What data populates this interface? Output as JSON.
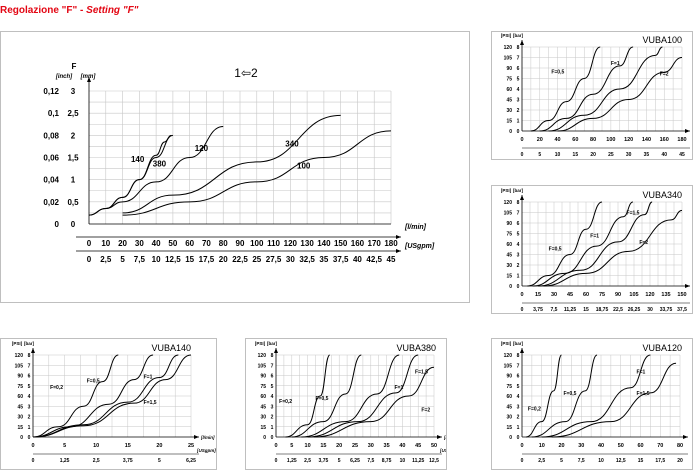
{
  "heading": {
    "main": "Regolazione \"F\"",
    "dash": " - ",
    "setting": "Setting \"F\""
  },
  "chart_data": [
    {
      "type": "line",
      "symbol": "1⇦2",
      "xlabel": "[l/min]",
      "x2label": "[USgpm]",
      "ylabel": "F",
      "yunit_inch": "[inch]",
      "yunit_mm": "[mm]",
      "xlim": [
        0,
        180
      ],
      "ylim": [
        0,
        3
      ],
      "x_ticks": [
        "0",
        "10",
        "20",
        "30",
        "40",
        "50",
        "60",
        "70",
        "80",
        "90",
        "100",
        "110",
        "120",
        "130",
        "140",
        "150",
        "160",
        "170",
        "180"
      ],
      "x2_ticks": [
        "0",
        "2,5",
        "5",
        "7,5",
        "10",
        "12,5",
        "15",
        "17,5",
        "20",
        "22,5",
        "25",
        "27,5",
        "30",
        "32,5",
        "35",
        "37,5",
        "40",
        "42,5",
        "45"
      ],
      "y_ticks_mm": [
        "0",
        "0,5",
        "1",
        "1,5",
        "2",
        "2,5",
        "3"
      ],
      "y_ticks_inch": [
        "0",
        "0,02",
        "0,04",
        "0,06",
        "0,08",
        "0,1",
        "0,12"
      ],
      "series": [
        {
          "name": "140",
          "points": [
            [
              0,
              0.2
            ],
            [
              10,
              0.35
            ],
            [
              20,
              0.6
            ],
            [
              30,
              1.0
            ],
            [
              40,
              1.55
            ],
            [
              45,
              1.85
            ],
            [
              49,
              2.0
            ]
          ]
        },
        {
          "name": "380",
          "points": [
            [
              0,
              0.2
            ],
            [
              10,
              0.35
            ],
            [
              20,
              0.6
            ],
            [
              30,
              1.0
            ],
            [
              40,
              1.5
            ],
            [
              50,
              2.0
            ]
          ]
        },
        {
          "name": "120",
          "points": [
            [
              10,
              0.35
            ],
            [
              20,
              0.5
            ],
            [
              40,
              0.95
            ],
            [
              60,
              1.5
            ],
            [
              80,
              2.2
            ]
          ]
        },
        {
          "name": "340",
          "points": [
            [
              20,
              0.25
            ],
            [
              50,
              0.65
            ],
            [
              100,
              1.4
            ],
            [
              150,
              2.45
            ]
          ]
        },
        {
          "name": "100",
          "points": [
            [
              20,
              0.2
            ],
            [
              60,
              0.5
            ],
            [
              100,
              0.95
            ],
            [
              140,
              1.5
            ],
            [
              180,
              2.1
            ]
          ]
        }
      ]
    },
    {
      "type": "line",
      "title": "VUBA100",
      "psi_unit": "[PSI]",
      "bar_unit": "[bar]",
      "xlim": [
        0,
        180
      ],
      "x_ticks": [
        "0",
        "20",
        "40",
        "60",
        "80",
        "100",
        "120",
        "140",
        "160",
        "180"
      ],
      "x2_ticks": [
        "0",
        "5",
        "10",
        "15",
        "20",
        "25",
        "30",
        "35",
        "40",
        "45"
      ],
      "y_bar_ticks": [
        "0",
        "1",
        "2",
        "3",
        "4",
        "5",
        "6",
        "7",
        "8"
      ],
      "y_psi_ticks": [
        "0",
        "15",
        "30",
        "45",
        "60",
        "75",
        "90",
        "105",
        "120"
      ],
      "series": [
        {
          "name": "F=0,5",
          "points": [
            [
              10,
              0
            ],
            [
              30,
              1
            ],
            [
              50,
              2.8
            ],
            [
              70,
              5
            ],
            [
              88,
              8
            ]
          ]
        },
        {
          "name": "F=1",
          "points": [
            [
              20,
              0
            ],
            [
              50,
              1.2
            ],
            [
              80,
              3.5
            ],
            [
              110,
              6.2
            ],
            [
              125,
              8
            ]
          ]
        },
        {
          "name": "F=1,5",
          "points": [
            [
              30,
              0
            ],
            [
              70,
              1.5
            ],
            [
              110,
              4
            ],
            [
              150,
              7.2
            ],
            [
              158,
              8
            ]
          ]
        },
        {
          "name": "F=2",
          "points": [
            [
              40,
              0
            ],
            [
              80,
              1.2
            ],
            [
              120,
              3
            ],
            [
              160,
              5.6
            ],
            [
              180,
              7
            ]
          ]
        }
      ]
    },
    {
      "type": "line",
      "title": "VUBA340",
      "psi_unit": "[PSI]",
      "bar_unit": "[bar]",
      "xlim": [
        0,
        150
      ],
      "x_ticks": [
        "0",
        "15",
        "30",
        "45",
        "60",
        "75",
        "90",
        "105",
        "120",
        "135",
        "150"
      ],
      "x2_ticks": [
        "0",
        "3,75",
        "7,5",
        "11,25",
        "15",
        "18,75",
        "22,5",
        "26,25",
        "30",
        "33,75",
        "37,5"
      ],
      "y_bar_ticks": [
        "0",
        "1",
        "2",
        "3",
        "4",
        "5",
        "6",
        "7",
        "8"
      ],
      "y_psi_ticks": [
        "0",
        "15",
        "30",
        "45",
        "60",
        "75",
        "90",
        "105",
        "120"
      ],
      "series": [
        {
          "name": "F=0,5",
          "points": [
            [
              5,
              0
            ],
            [
              25,
              1
            ],
            [
              45,
              3
            ],
            [
              60,
              5.4
            ],
            [
              75,
              8
            ]
          ]
        },
        {
          "name": "F=1",
          "points": [
            [
              10,
              0
            ],
            [
              40,
              1.2
            ],
            [
              70,
              3.8
            ],
            [
              95,
              6.6
            ],
            [
              104,
              8
            ]
          ]
        },
        {
          "name": "F=1,5",
          "points": [
            [
              15,
              0
            ],
            [
              55,
              1.5
            ],
            [
              90,
              4.2
            ],
            [
              115,
              6.8
            ],
            [
              122,
              8
            ]
          ]
        },
        {
          "name": "F=2",
          "points": [
            [
              20,
              0
            ],
            [
              60,
              1.2
            ],
            [
              100,
              3.3
            ],
            [
              140,
              6.3
            ],
            [
              150,
              7.2
            ]
          ]
        }
      ]
    },
    {
      "type": "line",
      "title": "VUBA140",
      "psi_unit": "[PSI]",
      "bar_unit": "[bar]",
      "xlabel": "[l/min]",
      "x2label": "[USgpm]",
      "xlim": [
        0,
        25
      ],
      "x_ticks": [
        "0",
        "5",
        "10",
        "15",
        "20",
        "25"
      ],
      "x2_ticks": [
        "0",
        "1,25",
        "2,5",
        "3,75",
        "5",
        "6,25"
      ],
      "y_bar_ticks": [
        "0",
        "1",
        "2",
        "3",
        "4",
        "5",
        "6",
        "7",
        "8"
      ],
      "y_psi_ticks": [
        "0",
        "15",
        "30",
        "45",
        "60",
        "75",
        "90",
        "105",
        "120"
      ],
      "series": [
        {
          "name": "F=0,2",
          "points": [
            [
              0,
              0
            ],
            [
              4,
              1
            ],
            [
              8,
              3
            ],
            [
              11,
              5.4
            ],
            [
              13.5,
              8
            ]
          ]
        },
        {
          "name": "F=0,5",
          "points": [
            [
              0,
              0
            ],
            [
              6,
              1
            ],
            [
              12,
              3.2
            ],
            [
              16,
              5.6
            ],
            [
              19,
              8
            ]
          ]
        },
        {
          "name": "F=1",
          "points": [
            [
              0,
              0
            ],
            [
              8,
              1.2
            ],
            [
              15,
              3.4
            ],
            [
              20,
              5.8
            ],
            [
              23,
              8
            ]
          ]
        },
        {
          "name": "F=1,5",
          "points": [
            [
              0,
              0
            ],
            [
              8,
              1.1
            ],
            [
              16,
              3.3
            ],
            [
              21,
              5.6
            ],
            [
              25,
              8
            ]
          ]
        }
      ]
    },
    {
      "type": "line",
      "title": "VUBA380",
      "psi_unit": "[PSI]",
      "bar_unit": "[bar]",
      "xlabel": "[l/min]",
      "x2label": "[USgpm]",
      "xlim": [
        0,
        50
      ],
      "x_ticks": [
        "0",
        "5",
        "10",
        "15",
        "20",
        "25",
        "30",
        "35",
        "40",
        "45",
        "50"
      ],
      "x2_ticks": [
        "0",
        "1,25",
        "2,5",
        "3,75",
        "5",
        "6,25",
        "7,5",
        "8,75",
        "10",
        "11,25",
        "12,5"
      ],
      "y_bar_ticks": [
        "0",
        "1",
        "2",
        "3",
        "4",
        "5",
        "6",
        "7",
        "8"
      ],
      "y_psi_ticks": [
        "0",
        "15",
        "30",
        "45",
        "60",
        "75",
        "90",
        "105",
        "120"
      ],
      "series": [
        {
          "name": "F=0,2",
          "points": [
            [
              3,
              0
            ],
            [
              10,
              1.2
            ],
            [
              14,
              4
            ],
            [
              17,
              8
            ]
          ]
        },
        {
          "name": "F=0,5",
          "points": [
            [
              5,
              0
            ],
            [
              15,
              1.5
            ],
            [
              22,
              4.2
            ],
            [
              27,
              8
            ]
          ]
        },
        {
          "name": "F=1",
          "points": [
            [
              8,
              0
            ],
            [
              22,
              1.5
            ],
            [
              32,
              4.2
            ],
            [
              39,
              8
            ]
          ]
        },
        {
          "name": "F=1,5",
          "points": [
            [
              10,
              0
            ],
            [
              26,
              1.5
            ],
            [
              38,
              4.3
            ],
            [
              45,
              8
            ]
          ]
        },
        {
          "name": "F=2",
          "points": [
            [
              12,
              0
            ],
            [
              30,
              1.5
            ],
            [
              42,
              4
            ],
            [
              50,
              6.8
            ]
          ]
        }
      ]
    },
    {
      "type": "line",
      "title": "VUBA120",
      "psi_unit": "[PSI]",
      "bar_unit": "[bar]",
      "xlim": [
        0,
        80
      ],
      "x_ticks": [
        "0",
        "10",
        "20",
        "30",
        "40",
        "50",
        "60",
        "70",
        "80"
      ],
      "x2_ticks": [
        "0",
        "2,5",
        "5",
        "7,5",
        "10",
        "12,5",
        "15",
        "17,5",
        "20"
      ],
      "y_bar_ticks": [
        "0",
        "1",
        "2",
        "3",
        "4",
        "5",
        "6",
        "7",
        "8"
      ],
      "y_psi_ticks": [
        "0",
        "15",
        "30",
        "45",
        "60",
        "75",
        "90",
        "105",
        "120"
      ],
      "series": [
        {
          "name": "F=0,2",
          "points": [
            [
              2,
              0
            ],
            [
              10,
              1.5
            ],
            [
              16,
              4.5
            ],
            [
              20,
              8
            ]
          ]
        },
        {
          "name": "F=0,5",
          "points": [
            [
              5,
              0
            ],
            [
              22,
              1.5
            ],
            [
              32,
              4.5
            ],
            [
              38,
              8
            ]
          ]
        },
        {
          "name": "F=1",
          "points": [
            [
              10,
              0
            ],
            [
              35,
              1.5
            ],
            [
              55,
              4.8
            ],
            [
              65,
              8
            ]
          ]
        },
        {
          "name": "F=1,5",
          "points": [
            [
              15,
              0
            ],
            [
              45,
              1.5
            ],
            [
              65,
              4.3
            ],
            [
              78,
              7.2
            ]
          ]
        }
      ]
    }
  ]
}
